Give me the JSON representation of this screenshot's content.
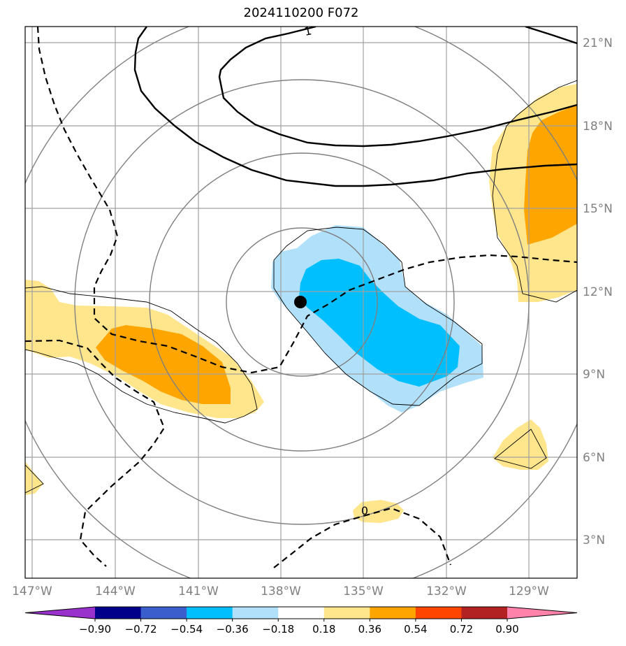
{
  "title": "2024110200 F072",
  "lon_labels": [
    "147°W",
    "144°W",
    "141°W",
    "138°W",
    "135°W",
    "132°W",
    "129°W"
  ],
  "lat_labels": [
    "21°N",
    "18°N",
    "15°N",
    "12°N",
    "9°N",
    "6°N",
    "3°N"
  ],
  "contour_labels": {
    "pos": "1",
    "zero": "0"
  },
  "colorbar": {
    "ticks": [
      "−0.90",
      "−0.72",
      "−0.54",
      "−0.36",
      "−0.18",
      "0.18",
      "0.36",
      "0.54",
      "0.72",
      "0.90"
    ],
    "colors": [
      "#9932cc",
      "#00008b",
      "#3a5fcd",
      "#00bfff",
      "#b0e0fa",
      "#ffffff",
      "#ffe68c",
      "#ffa500",
      "#ff4500",
      "#b22222",
      "#ff82ab"
    ]
  },
  "colors": {
    "light_blue": "#b0e0fa",
    "deep_sky_blue": "#00bfff",
    "light_yellow": "#ffe68c",
    "orange": "#ffa500",
    "gridline": "#a0a0a0",
    "rings": "#808080"
  },
  "storm_center_icon": "filled-circle-icon"
}
